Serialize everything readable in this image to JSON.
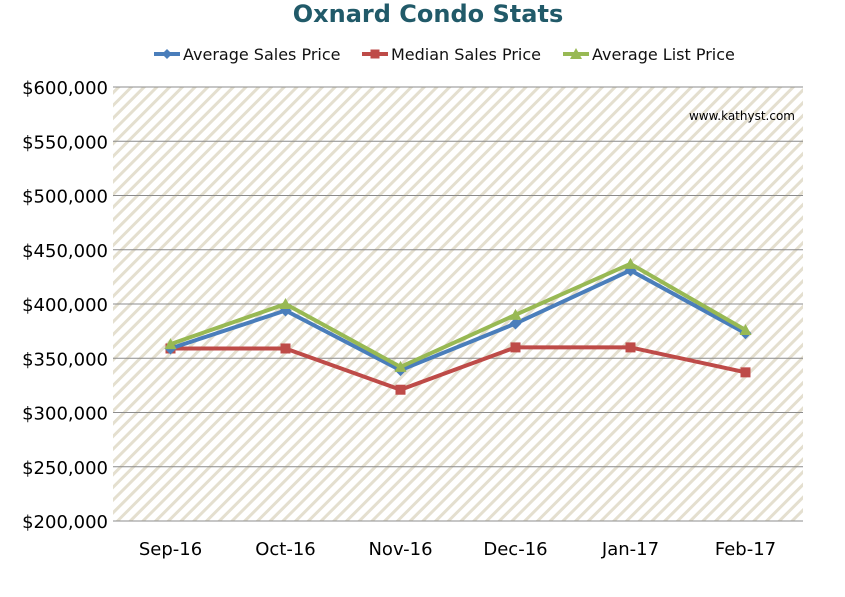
{
  "chart_data": {
    "type": "line",
    "title": "Oxnard Condo Stats",
    "watermark": "www.kathyst.com",
    "categories": [
      "Sep-16",
      "Oct-16",
      "Nov-16",
      "Dec-16",
      "Jan-17",
      "Feb-17"
    ],
    "ylim": [
      200000,
      600000
    ],
    "yticks": [
      200000,
      250000,
      300000,
      350000,
      400000,
      450000,
      500000,
      550000,
      600000
    ],
    "ytick_labels": [
      "$200,000",
      "$250,000",
      "$300,000",
      "$350,000",
      "$400,000",
      "$450,000",
      "$500,000",
      "$550,000",
      "$600,000"
    ],
    "grid": true,
    "legend_position": "top",
    "series": [
      {
        "name": "Average Sales Price",
        "color": "#4a7ebb",
        "marker": "diamond",
        "values": [
          359000,
          394000,
          339000,
          382000,
          431000,
          373000
        ]
      },
      {
        "name": "Median Sales Price",
        "color": "#be4b48",
        "marker": "square",
        "values": [
          359000,
          359000,
          321000,
          360000,
          360000,
          337000
        ]
      },
      {
        "name": "Average List Price",
        "color": "#98b954",
        "marker": "triangle",
        "values": [
          363000,
          400000,
          342000,
          390000,
          437000,
          376000
        ]
      }
    ]
  },
  "colors": {
    "title": "#215a69",
    "grid": "#8c8c8c",
    "pattern_stripe": "#e4dfcf"
  }
}
